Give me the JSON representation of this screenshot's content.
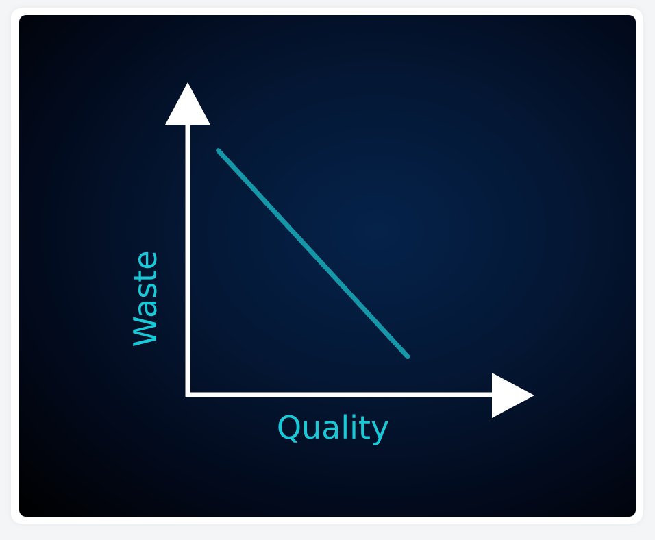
{
  "chart_data": {
    "type": "line",
    "xlabel": "Quality",
    "ylabel": "Waste",
    "tick_labels": "none",
    "grid": false,
    "legend": "none",
    "series": [
      {
        "x": [
          0.1,
          0.72
        ],
        "y": [
          0.9,
          0.14
        ],
        "color": "#1597a8"
      }
    ],
    "xlim": [
      0,
      1
    ],
    "ylim": [
      0,
      1
    ]
  },
  "colors": {
    "axis": "#ffffff",
    "label": "#19c9d8",
    "line": "#1597a8",
    "background_center": "#05224a",
    "background_edge": "#000000"
  }
}
